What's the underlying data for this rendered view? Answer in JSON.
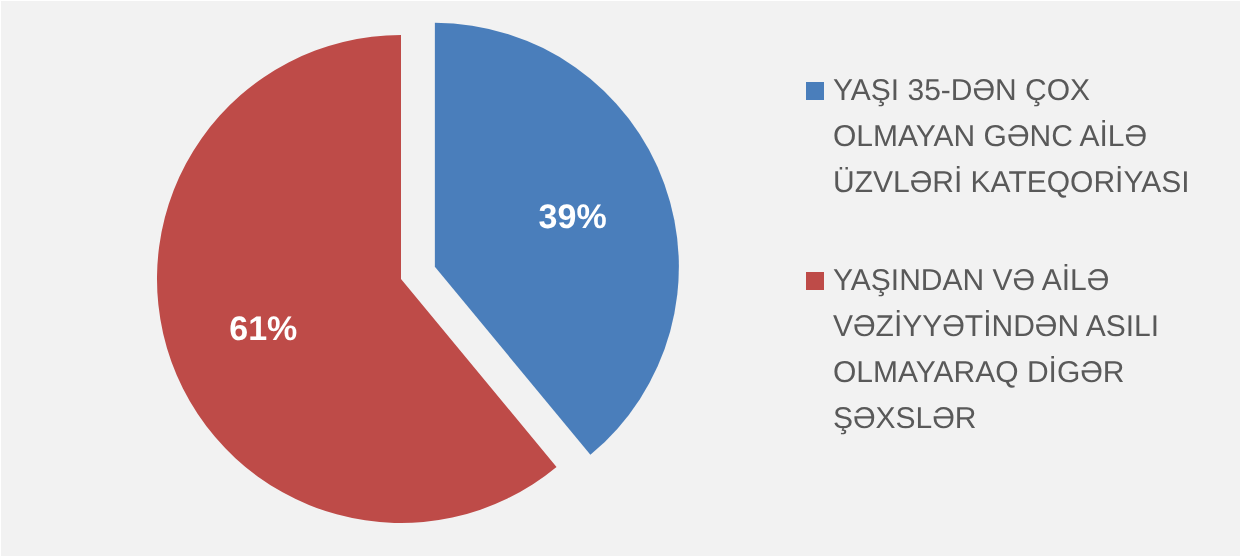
{
  "chart_data": {
    "type": "pie",
    "categories": [
      "YAŞI 35-DƏN ÇOX OLMAYAN GƏNC AİLƏ ÜZVLƏRİ KATEQORİYASI",
      "YAŞINDAN VƏ AİLƏ VƏZİYYƏTİNDƏN ASILI OLMAYARAQ DİGƏR ŞƏXSLƏR"
    ],
    "values": [
      39,
      61
    ],
    "colors": [
      "#4a7ebb",
      "#be4b48"
    ],
    "value_labels": [
      "39%",
      "61%"
    ],
    "legend": "right"
  }
}
